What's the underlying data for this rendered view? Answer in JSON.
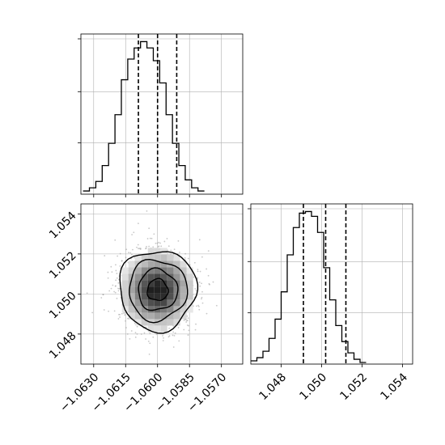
{
  "chart_data": [
    {
      "panel": "histogram-x",
      "type": "histogram",
      "xlim": [
        -1.0636,
        -1.056
      ],
      "bin_edges_start": -1.0635,
      "bin_width": 0.0003,
      "counts": [
        2,
        4,
        8,
        18,
        32,
        50,
        72,
        85,
        92,
        96,
        92,
        84,
        70,
        50,
        32,
        18,
        9,
        4,
        2
      ],
      "quantiles": [
        -1.0609,
        -1.06,
        -1.0591
      ],
      "grid": true
    },
    {
      "panel": "histogram-y",
      "type": "histogram",
      "xlim": [
        1.0465,
        1.0545
      ],
      "bin_edges_start": 1.0465,
      "bin_width": 0.0003,
      "counts": [
        2,
        4,
        8,
        16,
        28,
        45,
        68,
        85,
        94,
        95,
        92,
        82,
        60,
        40,
        24,
        14,
        7,
        3,
        1
      ],
      "quantiles": [
        1.0491,
        1.0502,
        1.0512
      ],
      "xticks": [
        "1.048",
        "1.050",
        "1.052",
        "1.054"
      ],
      "xtick_values": [
        1.048,
        1.05,
        1.052,
        1.054
      ],
      "grid": true
    },
    {
      "panel": "scatter-2d",
      "type": "scatter",
      "xlim": [
        -1.0636,
        -1.056
      ],
      "ylim": [
        1.0465,
        1.0545
      ],
      "center": [
        -1.06,
        1.0502
      ],
      "sigma": [
        0.00088,
        0.00098
      ],
      "contour_levels": [
        "0.5-sigma",
        "1-sigma",
        "1.5-sigma",
        "2-sigma"
      ],
      "xticks": [
        "-1.0630",
        "-1.0615",
        "-1.0600",
        "-1.0585",
        "-1.0570"
      ],
      "xtick_values": [
        -1.063,
        -1.0615,
        -1.06,
        -1.0585,
        -1.057
      ],
      "yticks": [
        "1.048",
        "1.050",
        "1.052",
        "1.054"
      ],
      "ytick_values": [
        1.048,
        1.05,
        1.052,
        1.054
      ],
      "grid": true
    }
  ],
  "colors": {
    "hist": "#000000",
    "grid": "#b0b0b0",
    "points": "#9a9a9a",
    "density_dark": "#000000",
    "contour": "#000000"
  }
}
